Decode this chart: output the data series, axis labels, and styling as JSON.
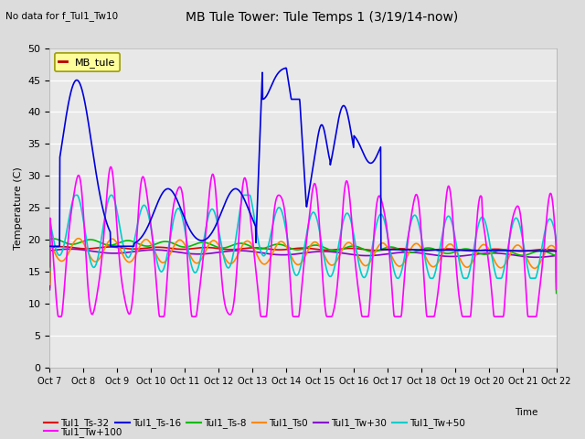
{
  "title": "MB Tule Tower: Tule Temps 1 (3/19/14-now)",
  "subtitle": "No data for f_Tul1_Tw10",
  "xlabel": "Time",
  "ylabel": "Temperature (C)",
  "ylim": [
    0,
    50
  ],
  "yticks": [
    0,
    5,
    10,
    15,
    20,
    25,
    30,
    35,
    40,
    45,
    50
  ],
  "xtick_labels": [
    "Oct 7",
    "Oct 8",
    "Oct 9",
    "Oct 10",
    "Oct 11",
    "Oct 12",
    "Oct 13",
    "Oct 14",
    "Oct 15",
    "Oct 16",
    "Oct 17",
    "Oct 18",
    "Oct 19",
    "Oct 20",
    "Oct 21",
    "Oct 22"
  ],
  "bg_color": "#dcdcdc",
  "plot_bg": "#e8e8e8",
  "legend_label": "MB_tule",
  "series": {
    "Tul1_Ts-32": {
      "color": "#dd0000",
      "lw": 1.2
    },
    "Tul1_Ts-16": {
      "color": "#0000dd",
      "lw": 1.2
    },
    "Tul1_Ts-8": {
      "color": "#00bb00",
      "lw": 1.2
    },
    "Tul1_Ts0": {
      "color": "#ff8800",
      "lw": 1.2
    },
    "Tul1_Tw+30": {
      "color": "#8800cc",
      "lw": 1.2
    },
    "Tul1_Tw+50": {
      "color": "#00cccc",
      "lw": 1.2
    },
    "Tul1_Tw+100": {
      "color": "#ff00ff",
      "lw": 1.2
    }
  }
}
